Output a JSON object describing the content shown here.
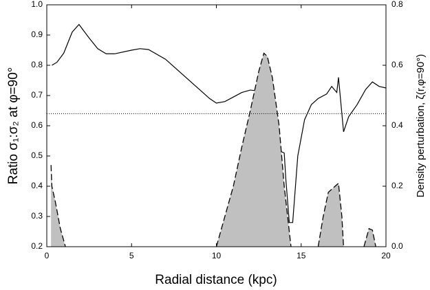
{
  "chart_data": {
    "type": "line",
    "xlabel": "Radial distance (kpc)",
    "ylabel": "Ratio σ₁:σ₂ at φ=90°",
    "y2label": "Density perturbation, ζ(r,φ=90°)",
    "xlim": [
      0,
      20
    ],
    "xticks": [
      0,
      5,
      10,
      15,
      20
    ],
    "ylim": [
      0.2,
      1
    ],
    "yticks": [
      0.2,
      0.3,
      0.4,
      0.5,
      0.6,
      0.7,
      0.8,
      0.9,
      {
        "value": 1,
        "label": "1.0"
      }
    ],
    "y2lim": [
      0,
      0.8
    ],
    "y2ticks": [
      {
        "value": 0,
        "label": "0.0"
      },
      0.2,
      0.4,
      0.6,
      0.8
    ],
    "reference_line": 0.64,
    "series": [
      {
        "style": "solid",
        "color": "#000000",
        "x": [
          0.3,
          0.6,
          1.0,
          1.5,
          1.9,
          2.5,
          3.0,
          3.5,
          4.0,
          5.0,
          5.5,
          6.0,
          7.0,
          8.0,
          9.0,
          9.6,
          10.0,
          10.5,
          11.0,
          11.5,
          12.0,
          12.5,
          13.0,
          13.5,
          13.8,
          14.0,
          14.1,
          14.3,
          14.5,
          14.8,
          15.2,
          15.6,
          16.0,
          16.5,
          16.8,
          17.1,
          17.2,
          17.5,
          17.8,
          18.3,
          18.8,
          19.2,
          19.6,
          20.0
        ],
        "values": [
          0.8,
          0.81,
          0.84,
          0.91,
          0.935,
          0.89,
          0.855,
          0.838,
          0.838,
          0.85,
          0.855,
          0.852,
          0.82,
          0.77,
          0.72,
          0.69,
          0.675,
          0.68,
          0.695,
          0.71,
          0.718,
          0.715,
          0.68,
          0.58,
          0.515,
          0.51,
          0.42,
          0.28,
          0.28,
          0.5,
          0.62,
          0.67,
          0.69,
          0.705,
          0.73,
          0.71,
          0.76,
          0.58,
          0.63,
          0.67,
          0.72,
          0.745,
          0.73,
          0.725
        ]
      },
      {
        "style": "dashed-area",
        "color": "#c0c0c0",
        "axis": "y2",
        "x": [
          0.25,
          0.3,
          0.5,
          0.8,
          1.1,
          5,
          10.0,
          10.5,
          11.0,
          11.5,
          12.0,
          12.5,
          12.8,
          13.0,
          13.3,
          13.7,
          14.0,
          14.4,
          15,
          16.0,
          16.3,
          16.6,
          17.0,
          17.2,
          17.4,
          17.5,
          18,
          18.7,
          19.0,
          19.2,
          19.4
        ],
        "values": [
          0.27,
          0.2,
          0.15,
          0.06,
          0,
          null,
          0,
          0.1,
          0.2,
          0.33,
          0.45,
          0.58,
          0.64,
          0.63,
          0.56,
          0.4,
          0.2,
          0,
          null,
          0,
          0.1,
          0.18,
          0.2,
          0.21,
          0.1,
          0,
          null,
          0,
          0.06,
          0.055,
          0
        ]
      }
    ]
  }
}
